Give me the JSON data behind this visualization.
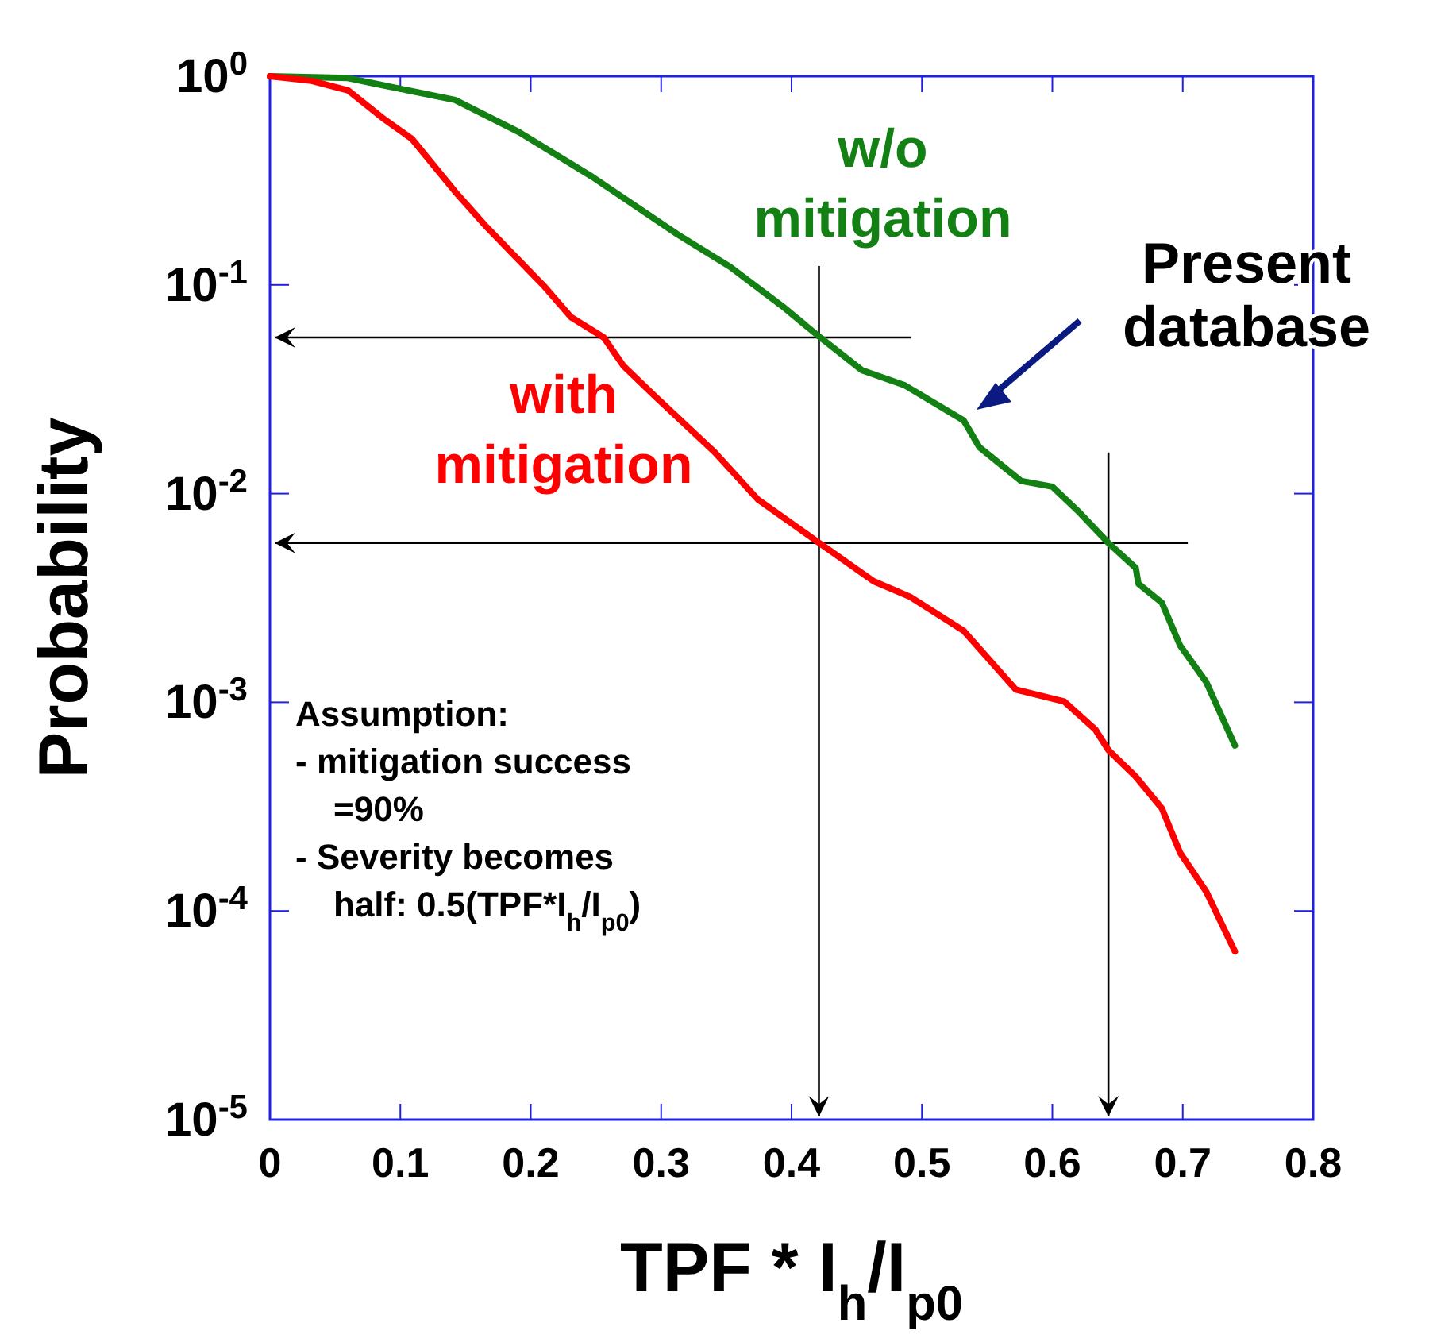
{
  "chart_data": {
    "type": "line",
    "xlabel": "TPF * I$_{h}$/I$_{p0}$",
    "ylabel": "Probability",
    "log": "y",
    "xlim": [
      0,
      0.8
    ],
    "xticks": [
      0,
      0.1,
      0.2,
      0.3,
      0.4,
      0.5,
      0.6,
      0.7,
      0.8
    ],
    "ylim": [
      1e-05,
      1
    ],
    "yticks": [
      {
        "value": 1,
        "label": "10$^{0}$"
      },
      {
        "value": 0.1,
        "label": "10$^{-1}$"
      },
      {
        "value": 0.01,
        "label": "10$^{-2}$"
      },
      {
        "value": 0.001,
        "label": "10$^{-3}$"
      },
      {
        "value": 0.0001,
        "label": "10$^{-4}$"
      },
      {
        "value": 1e-05,
        "label": "10$^{-5}$"
      }
    ],
    "grid": false,
    "marker": "none",
    "line_style": "solid",
    "series": [
      {
        "name": "w/o mitigation",
        "color": "#138013",
        "x": [
          0,
          0.06,
          0.081,
          0.142,
          0.191,
          0.247,
          0.313,
          0.353,
          0.393,
          0.422,
          0.454,
          0.487,
          0.532,
          0.544,
          0.576,
          0.6,
          0.621,
          0.643,
          0.664,
          0.666,
          0.684,
          0.698,
          0.718,
          0.74
        ],
        "values": [
          1,
          0.98,
          0.92,
          0.77,
          0.54,
          0.33,
          0.174,
          0.122,
          0.079,
          0.056,
          0.039,
          0.033,
          0.0224,
          0.0167,
          0.0115,
          0.0108,
          0.0081,
          0.0058,
          0.0044,
          0.0037,
          0.003,
          0.00187,
          0.00125,
          0.00062
        ]
      },
      {
        "name": "with mitigation",
        "color": "#ff0000",
        "x": [
          0,
          0.032,
          0.06,
          0.088,
          0.109,
          0.142,
          0.166,
          0.21,
          0.231,
          0.256,
          0.271,
          0.296,
          0.341,
          0.374,
          0.418,
          0.463,
          0.491,
          0.532,
          0.572,
          0.609,
          0.633,
          0.643,
          0.664,
          0.684,
          0.698,
          0.718,
          0.74
        ],
        "values": [
          1,
          0.95,
          0.855,
          0.62,
          0.5,
          0.28,
          0.19,
          0.099,
          0.07,
          0.056,
          0.041,
          0.029,
          0.0158,
          0.0094,
          0.006,
          0.0038,
          0.0032,
          0.0022,
          0.00115,
          0.00101,
          0.00074,
          0.00059,
          0.00044,
          0.00031,
          0.00019,
          0.000124,
          6.4e-05
        ]
      }
    ],
    "ref_lines": [
      {
        "axis": "y",
        "value": 0.056,
        "color": "#000000"
      },
      {
        "axis": "y",
        "value": 0.0058,
        "color": "#000000"
      },
      {
        "axis": "x",
        "value": 0.421,
        "color": "#000000"
      },
      {
        "axis": "x",
        "value": 0.643,
        "color": "#000000"
      }
    ],
    "annotations": [
      "Present database",
      "Assumption:\n- mitigation success\n   =90%\n- Severity becomes\n   half: 0.5(TPF*I$_{h}$/I$_{p0}$)"
    ]
  }
}
